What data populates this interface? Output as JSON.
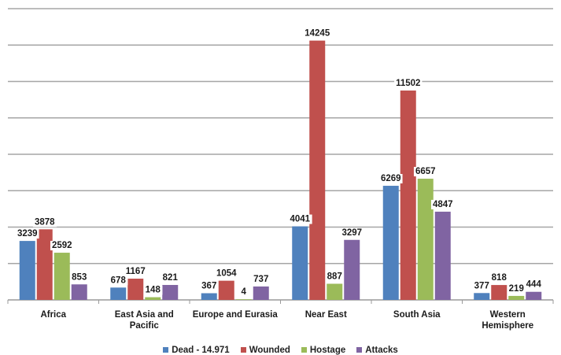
{
  "chart_data": {
    "type": "bar",
    "categories": [
      [
        "Africa"
      ],
      [
        "East Asia and",
        "Pacific"
      ],
      [
        "Europe and Eurasia"
      ],
      [
        "Near East"
      ],
      [
        "South Asia"
      ],
      [
        "Western",
        "Hemisphere"
      ]
    ],
    "series": [
      {
        "name": "Dead - 14.971",
        "color": "#4f81bd",
        "values": [
          3239,
          678,
          367,
          4041,
          6269,
          377
        ]
      },
      {
        "name": "Wounded",
        "color": "#c0504d",
        "values": [
          3878,
          1167,
          1054,
          14245,
          11502,
          818
        ]
      },
      {
        "name": "Hostage",
        "color": "#9bbb59",
        "values": [
          2592,
          148,
          4,
          887,
          6657,
          219
        ]
      },
      {
        "name": "Attacks",
        "color": "#8064a2",
        "values": [
          853,
          821,
          737,
          3297,
          4847,
          444
        ]
      }
    ],
    "ylim": [
      0,
      16000
    ],
    "grid": true,
    "legend_position": "bottom",
    "title": "",
    "xlabel": "",
    "ylabel": ""
  }
}
